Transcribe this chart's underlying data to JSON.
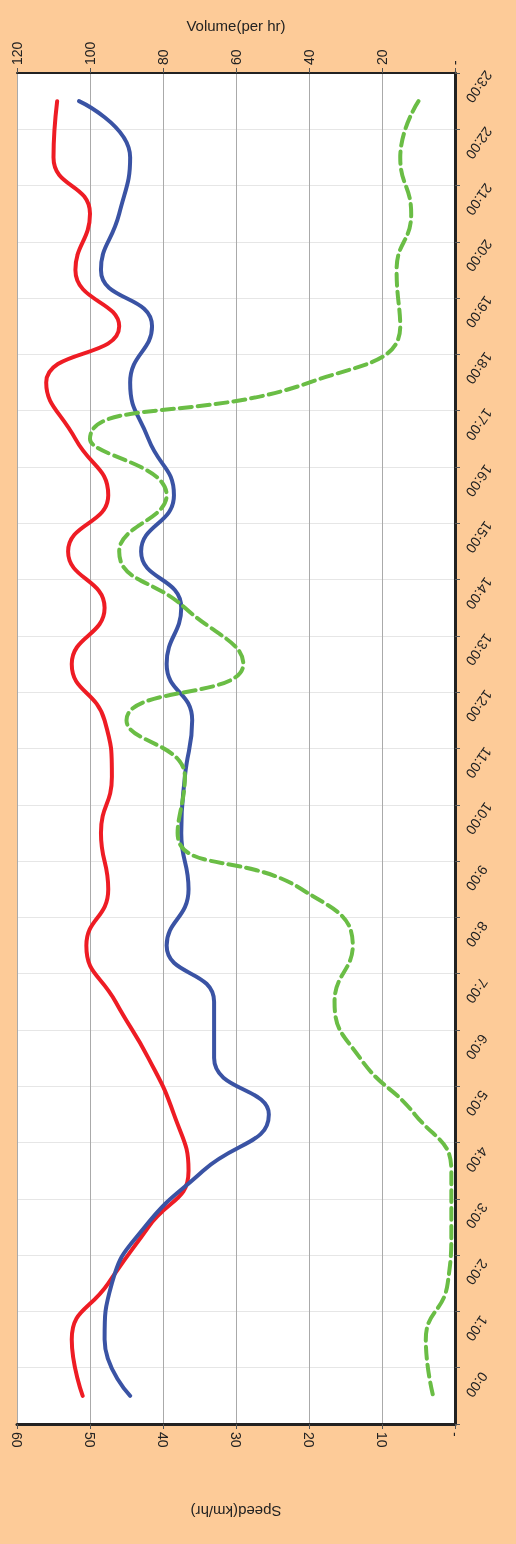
{
  "chart_data": {
    "type": "line",
    "orientation": "horizontal",
    "xlabel": "Speed(km/hr)",
    "x2label": "Volume(per hr)",
    "categories": [
      "23:00",
      "22:00",
      "21:00",
      "20:00",
      "19:00",
      "18:00",
      "17:00",
      "16:00",
      "15:00",
      "14:00",
      "13:00",
      "12:00",
      "11:00",
      "10:00",
      "9:00",
      "8:00",
      "7:00",
      "6:00",
      "5:00",
      "4:00",
      "3:00",
      "2:00",
      "1:00",
      "0:00"
    ],
    "xlim": [
      60,
      0
    ],
    "xticks": [
      60,
      50,
      40,
      30,
      20,
      10,
      {
        "value": 0,
        "label": "-"
      }
    ],
    "x2lim": [
      120,
      0
    ],
    "x2ticks": [
      120,
      100,
      80,
      60,
      40,
      20,
      {
        "value": 0,
        "label": "-"
      }
    ],
    "grid": true,
    "marker": "none",
    "series": [
      {
        "color": "#ee1c24",
        "line_style": "solid",
        "values": [
          54.5,
          55,
          50,
          52,
          46,
          56,
          52,
          47.5,
          53,
          48,
          52.5,
          48,
          47,
          48.5,
          47.5,
          50.5,
          46.5,
          42,
          38.5,
          36.5,
          42,
          47.5,
          52.5,
          51
        ]
      },
      {
        "color": "#3a53a4",
        "line_style": "solid",
        "values": [
          51.5,
          44.5,
          46,
          48.5,
          41.5,
          44.5,
          42,
          38.5,
          43,
          37.5,
          39.5,
          36,
          37,
          37.5,
          36.5,
          39.5,
          33,
          33,
          25.5,
          34.5,
          42.5,
          47,
          48,
          44.5
        ]
      },
      {
        "color": "#6abd45",
        "line_style": "dashed",
        "axis": "x2",
        "values": [
          10,
          15,
          12,
          16,
          15,
          40,
          100,
          79,
          92,
          74,
          58,
          90,
          74,
          76,
          42,
          28,
          33,
          26,
          11,
          1,
          1,
          2,
          8,
          6
        ]
      }
    ]
  }
}
